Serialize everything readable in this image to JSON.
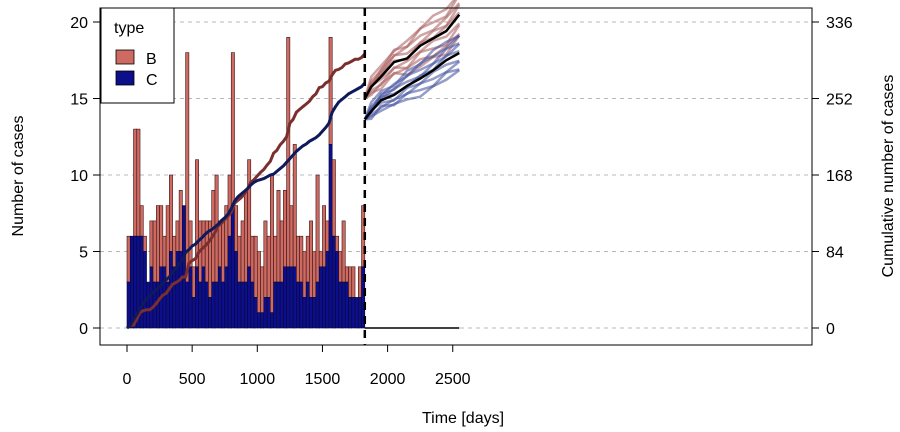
{
  "chart_data": {
    "type": "bar",
    "xlabel": "Time [days]",
    "ylabel": "Number of cases",
    "y2label": "Cumulative number of cases",
    "xlim": [
      -85,
      2600
    ],
    "ylim": [
      -0.8,
      20.5
    ],
    "y2lim": [
      0,
      336
    ],
    "xticks": [
      "0",
      "500",
      "1000",
      "1500",
      "2000",
      "2500"
    ],
    "yticks": [
      "0",
      "5",
      "10",
      "15",
      "20"
    ],
    "y2ticks": [
      "0",
      "84",
      "168",
      "252",
      "336"
    ],
    "y2_scale": 16.8,
    "grid": "horizontal dashed at left-axis ticks",
    "legend": {
      "title": "type",
      "position": "top-left",
      "entries": [
        "B",
        "C"
      ]
    },
    "colors": {
      "B": "#cd6a62",
      "C": "#0d0f8a",
      "B_line": "#7a2f2e",
      "C_line": "#0f1a5c",
      "projection_mean": "#000000"
    },
    "bar_width_days": 25,
    "bin_start_days": [
      0,
      25,
      50,
      75,
      100,
      125,
      150,
      175,
      200,
      225,
      250,
      275,
      300,
      325,
      350,
      375,
      400,
      425,
      450,
      475,
      500,
      525,
      550,
      575,
      600,
      625,
      650,
      675,
      700,
      725,
      750,
      775,
      800,
      825,
      850,
      875,
      900,
      925,
      950,
      975,
      1000,
      1025,
      1050,
      1075,
      1100,
      1125,
      1150,
      1175,
      1200,
      1225,
      1250,
      1275,
      1300,
      1325,
      1350,
      1375,
      1400,
      1425,
      1450,
      1475,
      1500,
      1525,
      1550,
      1575,
      1600,
      1625,
      1650,
      1675,
      1700,
      1725,
      1750,
      1775,
      1800
    ],
    "series": [
      {
        "name": "C",
        "values": [
          3,
          6,
          6,
          6,
          6,
          5,
          3,
          4,
          3,
          3,
          4,
          4,
          3,
          5,
          4,
          5,
          5,
          8,
          3,
          4,
          2,
          4,
          3,
          4,
          3,
          2,
          3,
          3,
          4,
          3,
          4,
          6,
          8,
          5,
          3,
          3,
          3,
          4,
          3,
          2,
          1,
          1,
          2,
          2,
          1,
          3,
          3,
          3,
          4,
          4,
          4,
          4,
          3,
          3,
          2,
          3,
          2,
          2,
          3,
          4,
          4,
          5,
          12,
          6,
          5,
          3,
          3,
          3,
          2,
          2,
          2,
          2,
          4
        ]
      },
      {
        "name": "B",
        "values": [
          3,
          0,
          7,
          7,
          2,
          1,
          0,
          3,
          4,
          5,
          4,
          2,
          5,
          5,
          2,
          2,
          4,
          0,
          15,
          3,
          2,
          7,
          4,
          3,
          4,
          5,
          6,
          7,
          3,
          4,
          4,
          4,
          10,
          3,
          3,
          4,
          6,
          7,
          3,
          4,
          4,
          3,
          5,
          4,
          9,
          3,
          6,
          4,
          5,
          15,
          4,
          8,
          3,
          3,
          3,
          3,
          5,
          3,
          7,
          1,
          4,
          2,
          7,
          5,
          1,
          2,
          4,
          1,
          2,
          2,
          0,
          2,
          4
        ]
      }
    ],
    "observation_end_day": 1825,
    "projection_start_days": [
      1825,
      1875,
      1950,
      2050,
      2150,
      2250,
      2350,
      2450,
      2550
    ],
    "projection_B_mean": [
      252,
      265,
      276,
      292,
      296,
      310,
      318,
      326,
      344
    ],
    "projection_C_mean": [
      229,
      238,
      250,
      256,
      266,
      274,
      283,
      294,
      302
    ],
    "projection_B_spread": [
      0,
      8,
      12,
      15,
      18,
      20,
      22,
      24,
      26
    ],
    "projection_C_spread": [
      0,
      7,
      10,
      13,
      15,
      17,
      19,
      20,
      22
    ]
  }
}
